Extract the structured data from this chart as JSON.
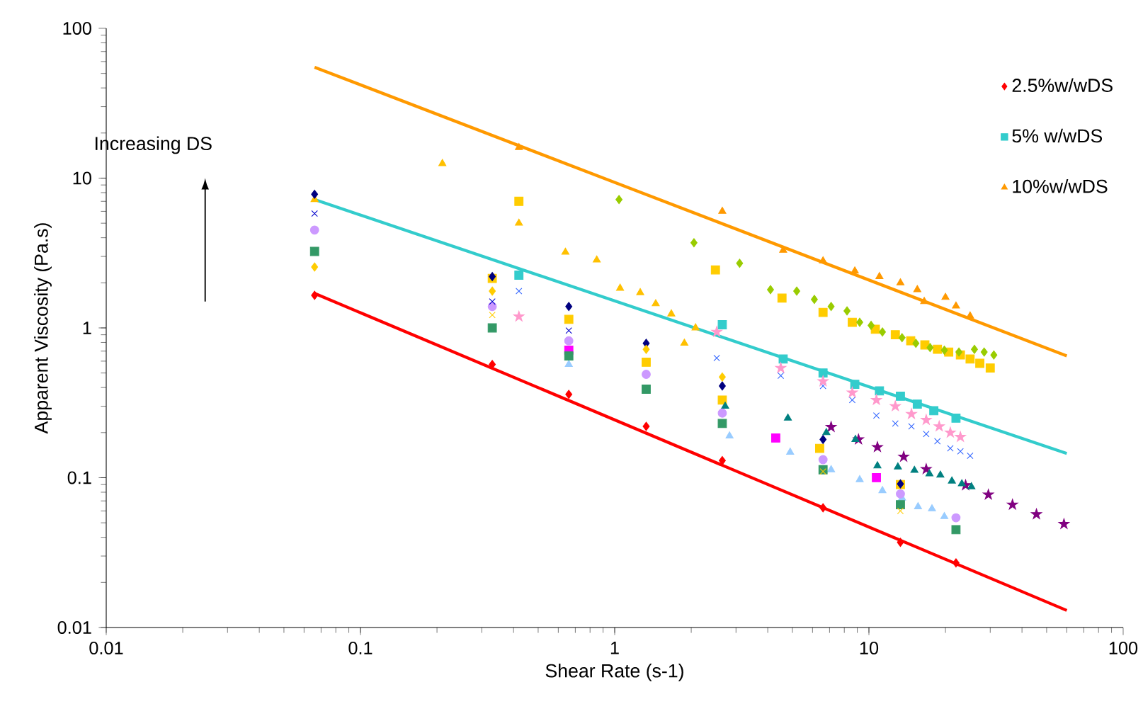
{
  "chart_data": {
    "type": "scatter",
    "xlabel": "Shear Rate (s-1)",
    "ylabel": "Apparent Viscosity (Pa.s)",
    "annotations": [
      "Increasing DS"
    ],
    "log": "xy",
    "xlim": [
      0.01,
      100
    ],
    "ylim": [
      0.01,
      100
    ],
    "xticks": [
      0.01,
      0.1,
      1,
      10,
      100
    ],
    "yticks": [
      0.01,
      0.1,
      1,
      10,
      100
    ],
    "grid": false,
    "legend": "top right",
    "series": [
      {
        "type": "line",
        "marker": "none",
        "line_style": "solid",
        "color": "#ff0000",
        "x": [
          0.066,
          60
        ],
        "values": [
          1.7,
          0.013
        ]
      },
      {
        "type": "line",
        "marker": "none",
        "line_style": "solid",
        "color": "#33cccc",
        "x": [
          0.066,
          60
        ],
        "values": [
          7.2,
          0.145
        ]
      },
      {
        "type": "line",
        "marker": "none",
        "line_style": "solid",
        "color": "#ff9900",
        "x": [
          0.066,
          60
        ],
        "values": [
          55,
          0.65
        ]
      },
      {
        "name": "2.5%w/wDS",
        "marker": "diamond",
        "color": "#ff0000",
        "x": [
          0.066,
          0.33,
          0.66,
          1.33,
          2.65,
          6.6,
          13.3,
          22
        ],
        "values": [
          1.65,
          0.57,
          0.36,
          0.22,
          0.13,
          0.063,
          0.037,
          0.027
        ]
      },
      {
        "name": "5% w/wDS",
        "marker": "square",
        "color": "#33cccc",
        "x": [
          0.42,
          2.65,
          4.6,
          6.6,
          8.8,
          11,
          13.3,
          15.5,
          18,
          22
        ],
        "values": [
          2.25,
          1.05,
          0.62,
          0.5,
          0.42,
          0.38,
          0.35,
          0.31,
          0.28,
          0.25
        ]
      },
      {
        "name": "10%w/wDS",
        "marker": "triangle",
        "color": "#ff9900",
        "x": [
          0.42,
          2.65,
          4.6,
          6.6,
          8.8,
          11,
          13.3,
          15.5,
          16.5,
          20,
          22,
          25
        ],
        "values": [
          16,
          6,
          3.3,
          2.8,
          2.4,
          2.2,
          2.0,
          1.8,
          1.5,
          1.6,
          1.4,
          1.2
        ]
      },
      {
        "marker": "triangle",
        "color": "#ffc000",
        "x": [
          0.066,
          0.21,
          0.42,
          0.64,
          0.85,
          1.05,
          1.26,
          1.45,
          1.67,
          1.88,
          2.08
        ],
        "values": [
          7.2,
          12.5,
          5.0,
          3.2,
          2.84,
          1.84,
          1.72,
          1.45,
          1.24,
          0.79,
          1.0
        ]
      },
      {
        "marker": "square",
        "color": "#ffcc00",
        "x": [
          0.42,
          2.49,
          4.55,
          6.6,
          8.6,
          10.6,
          12.7,
          14.6,
          16.6,
          18.6,
          20.6,
          22.9,
          25,
          27.3,
          30
        ],
        "values": [
          7.0,
          2.44,
          1.58,
          1.27,
          1.09,
          0.98,
          0.9,
          0.82,
          0.77,
          0.72,
          0.69,
          0.66,
          0.62,
          0.58,
          0.54
        ]
      },
      {
        "marker": "square",
        "color": "#ffcc00",
        "x": [
          0.33,
          0.66,
          1.33,
          2.65,
          6.4,
          13.3
        ],
        "values": [
          2.14,
          1.14,
          0.59,
          0.33,
          0.157,
          0.09
        ]
      },
      {
        "marker": "diamond",
        "color": "#99cc00",
        "x": [
          1.04,
          2.05,
          3.1,
          4.1,
          5.2,
          6.1,
          7.1,
          8.2,
          9.2,
          10.2,
          11.3,
          13.5,
          15.3,
          17.4,
          19.8,
          22.6,
          26,
          28.4,
          31
        ],
        "values": [
          7.2,
          3.7,
          2.7,
          1.8,
          1.76,
          1.55,
          1.39,
          1.3,
          1.09,
          1.04,
          0.94,
          0.86,
          0.79,
          0.74,
          0.71,
          0.69,
          0.72,
          0.69,
          0.66
        ]
      },
      {
        "marker": "cross",
        "color": "#3366ff",
        "x": [
          0.42,
          2.52,
          4.5,
          6.6,
          8.6,
          10.7,
          12.7,
          14.7,
          16.8,
          18.6,
          20.9,
          22.9,
          25
        ],
        "values": [
          1.76,
          0.63,
          0.48,
          0.41,
          0.33,
          0.26,
          0.23,
          0.22,
          0.196,
          0.175,
          0.157,
          0.15,
          0.14
        ]
      },
      {
        "marker": "star",
        "color": "#ff99cc",
        "x": [
          0.42,
          2.52,
          4.5,
          6.6,
          8.6,
          10.7,
          12.7,
          14.7,
          16.8,
          18.9,
          20.9,
          22.9
        ],
        "values": [
          1.19,
          0.94,
          0.54,
          0.44,
          0.37,
          0.33,
          0.3,
          0.266,
          0.243,
          0.22,
          0.2,
          0.187
        ]
      },
      {
        "marker": "star",
        "color": "#800080",
        "x": [
          7.1,
          9.1,
          10.8,
          13.7,
          16.8,
          24,
          29.5,
          36.7,
          45.6,
          58.5
        ],
        "values": [
          0.218,
          0.18,
          0.16,
          0.138,
          0.114,
          0.089,
          0.077,
          0.066,
          0.057,
          0.049
        ]
      },
      {
        "marker": "triangle",
        "color": "#008080",
        "x": [
          2.72,
          4.8,
          6.8,
          8.85,
          10.8,
          13,
          15.1,
          17.3,
          19.1,
          21.2,
          23.2,
          25.3
        ],
        "values": [
          0.3,
          0.25,
          0.2,
          0.18,
          0.12,
          0.118,
          0.112,
          0.106,
          0.104,
          0.095,
          0.091,
          0.087
        ]
      },
      {
        "marker": "triangle",
        "color": "#99ccff",
        "x": [
          0.66,
          1.33,
          2.83,
          4.9,
          7.1,
          9.2,
          11.3,
          13.5,
          15.6,
          17.7,
          19.8
        ],
        "values": [
          0.57,
          null,
          0.19,
          0.148,
          0.113,
          0.097,
          0.082,
          0.073,
          0.064,
          0.062,
          0.055
        ]
      },
      {
        "marker": "square",
        "color": "#ff00ff",
        "x": [
          0.66,
          4.3,
          10.7
        ],
        "values": [
          0.71,
          0.184,
          0.1
        ]
      },
      {
        "marker": "circle",
        "color": "#cc99ff",
        "x": [
          0.066,
          0.33,
          0.66,
          1.33,
          2.65,
          6.6,
          13.3,
          22
        ],
        "values": [
          4.5,
          1.39,
          0.82,
          0.49,
          0.27,
          0.132,
          0.078,
          0.054
        ]
      },
      {
        "marker": "square",
        "color": "#339966",
        "x": [
          0.066,
          0.33,
          0.66,
          1.33,
          2.65,
          6.6,
          13.3,
          22
        ],
        "values": [
          3.24,
          1.0,
          0.65,
          0.39,
          0.23,
          0.113,
          0.066,
          0.045
        ]
      },
      {
        "marker": "diamond",
        "color": "#000080",
        "x": [
          0.066,
          0.33,
          0.66,
          1.33,
          2.65,
          6.6,
          13.3
        ],
        "values": [
          7.8,
          2.2,
          1.39,
          0.79,
          0.41,
          0.18,
          0.091
        ]
      },
      {
        "marker": "cross",
        "color": "#0000cc",
        "x": [
          0.066,
          0.33,
          0.66
        ],
        "values": [
          5.8,
          1.5,
          0.96
        ]
      },
      {
        "marker": "diamond",
        "color": "#ffcc00",
        "x": [
          0.066,
          0.33,
          1.33,
          2.65
        ],
        "values": [
          2.55,
          1.76,
          0.72,
          0.47
        ]
      },
      {
        "marker": "cross",
        "color": "#ffcc00",
        "x": [
          0.33,
          6.6,
          13.3
        ],
        "values": [
          1.22,
          0.11,
          0.06
        ]
      }
    ]
  }
}
